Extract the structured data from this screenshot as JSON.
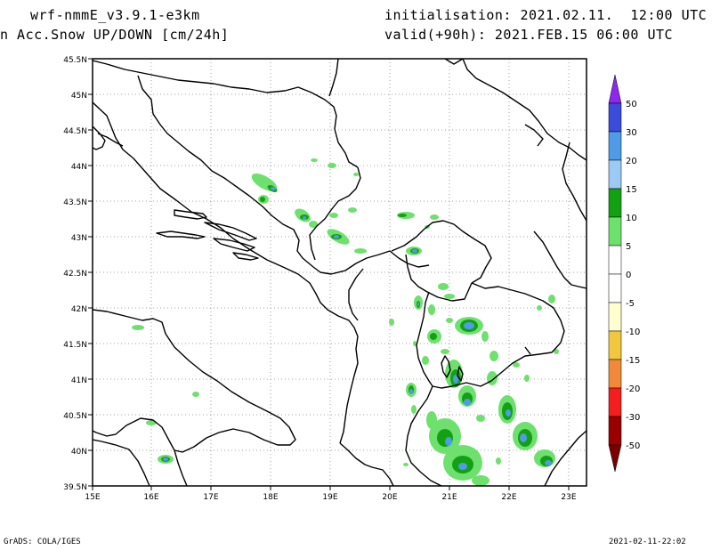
{
  "header": {
    "model": "wrf-nmmE_v3.9.1-e3km",
    "product": "n Acc.Snow UP/DOWN [cm/24h]",
    "init": "initialisation: 2021.02.11.  12:00 UTC",
    "valid": "valid(+90h): 2021.FEB.15 06:00 UTC"
  },
  "axes": {
    "lat_labels": [
      "45.5N",
      "45N",
      "44.5N",
      "44N",
      "43.5N",
      "43N",
      "42.5N",
      "42N",
      "41.5N",
      "41N",
      "40.5N",
      "40N",
      "39.5N"
    ],
    "lon_labels": [
      "15E",
      "16E",
      "17E",
      "18E",
      "19E",
      "20E",
      "21E",
      "22E",
      "23E"
    ]
  },
  "colorbar": {
    "labels": [
      "50",
      "30",
      "20",
      "15",
      "10",
      "5",
      "0",
      "-5",
      "-10",
      "-15",
      "-20",
      "-30",
      "-50"
    ],
    "colors": [
      "#3b4bdc",
      "#4f9be8",
      "#9ccaf5",
      "#13a013",
      "#6ee06e",
      "#ffffff",
      "#ffffff",
      "#ffffd0",
      "#f3c63f",
      "#f08a3a",
      "#f41e1e",
      "#9b0000"
    ],
    "top_arrow_color": "#8c28f0",
    "bottom_arrow_color": "#7a0000"
  },
  "footer": {
    "left": "GrADS: COLA/IGES",
    "right": "2021-02-11-22:02"
  }
}
